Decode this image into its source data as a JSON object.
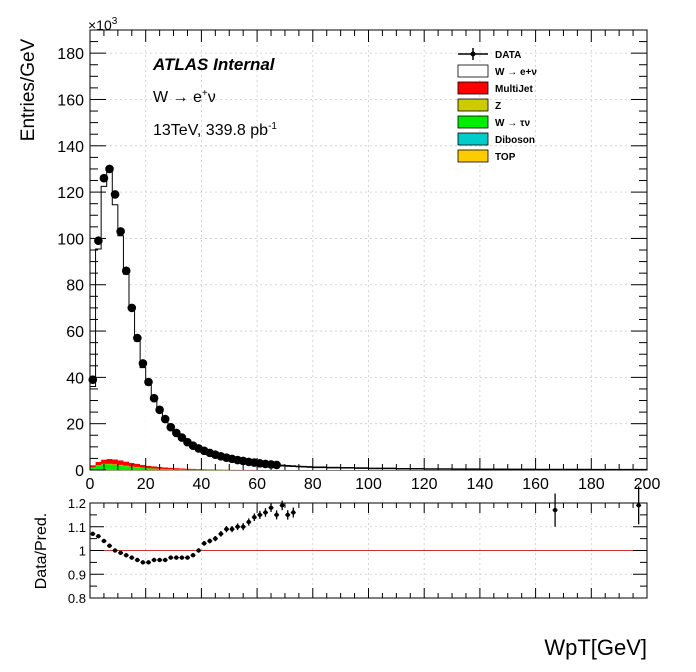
{
  "top_panel": {
    "y_label": "Entries/GeV",
    "y_multiplier": "×10",
    "y_multiplier_exp": "3",
    "atlas_label": "ATLAS Internal",
    "process_label": "W → e",
    "process_sup": "+",
    "process_tail": "ν",
    "energy_label": "13TeV, 339.8 pb",
    "energy_sup": "-1"
  },
  "bottom_panel": {
    "y_label": "Data/Pred.",
    "x_label": "WpT[GeV]"
  },
  "legend": [
    {
      "label": "DATA",
      "kind": "marker",
      "color": "#000000"
    },
    {
      "label": "W  → e+ν",
      "kind": "box",
      "color": "#ffffff"
    },
    {
      "label": "MultiJet",
      "kind": "box",
      "color": "#ff0000"
    },
    {
      "label": "Z",
      "kind": "box",
      "color": "#cccc00"
    },
    {
      "label": "W  → τν",
      "kind": "box",
      "color": "#00ee00"
    },
    {
      "label": "Diboson",
      "kind": "box",
      "color": "#00cccc"
    },
    {
      "label": "TOP",
      "kind": "box",
      "color": "#ffcc00"
    }
  ],
  "chart_data": [
    {
      "type": "bar",
      "subtype": "stacked-histogram-with-data-points",
      "x_unit": "GeV",
      "xlim": [
        0,
        200
      ],
      "ylim": [
        0,
        190
      ],
      "y_scale_factor": 1000,
      "x_ticks": [
        0,
        20,
        40,
        60,
        80,
        100,
        120,
        140,
        160,
        180,
        200
      ],
      "y_ticks": [
        0,
        20,
        40,
        60,
        80,
        100,
        120,
        140,
        160,
        180
      ],
      "bin_edges": [
        0,
        2,
        4,
        6,
        8,
        10,
        12,
        14,
        16,
        18,
        20,
        22,
        24,
        26,
        28,
        30,
        32,
        34,
        36,
        38,
        40,
        42,
        44,
        46,
        48,
        50,
        52,
        54,
        56,
        58,
        60,
        62,
        64,
        66,
        68,
        70,
        72,
        74,
        76,
        78,
        80,
        85,
        90,
        95,
        100,
        110,
        120,
        130,
        140,
        150,
        160,
        170,
        180,
        190,
        200
      ],
      "data": [
        39,
        99,
        126,
        130,
        119,
        103,
        86,
        70,
        57,
        46,
        38,
        31,
        26,
        22,
        18.5,
        16,
        14,
        12,
        10.5,
        9.3,
        8.3,
        7.4,
        6.6,
        5.9,
        5.3,
        4.8,
        4.3,
        3.9,
        3.5,
        3.2,
        2.9,
        2.6,
        2.4,
        2.2,
        2.0,
        1.85,
        1.7,
        1.55,
        1.45,
        1.35,
        1.2,
        1.05,
        0.95,
        0.85,
        0.7,
        0.55,
        0.45,
        0.38,
        0.32,
        0.27,
        0.23,
        0.2,
        0.17,
        0.15
      ],
      "series": [
        {
          "name": "TOP",
          "color": "#ffcc00",
          "values": [
            0.1,
            0.1,
            0.1,
            0.1,
            0.1,
            0.1,
            0.1,
            0.1,
            0.1,
            0.1,
            0.1,
            0.1,
            0.1,
            0.1,
            0.1,
            0.1,
            0.1,
            0.1,
            0.1,
            0.05,
            0.05,
            0.05,
            0.05,
            0.05,
            0.05,
            0,
            0,
            0,
            0,
            0,
            0,
            0,
            0,
            0,
            0,
            0,
            0,
            0,
            0,
            0,
            0,
            0,
            0,
            0,
            0,
            0,
            0,
            0,
            0,
            0,
            0,
            0,
            0,
            0
          ]
        },
        {
          "name": "Diboson",
          "color": "#00cccc",
          "values": [
            0.05,
            0.05,
            0.05,
            0.05,
            0.05,
            0.05,
            0.05,
            0.05,
            0.05,
            0.05,
            0.05,
            0.05,
            0.05,
            0.05,
            0.05,
            0,
            0,
            0,
            0,
            0,
            0,
            0,
            0,
            0,
            0,
            0,
            0,
            0,
            0,
            0,
            0,
            0,
            0,
            0,
            0,
            0,
            0,
            0,
            0,
            0,
            0,
            0,
            0,
            0,
            0,
            0,
            0,
            0,
            0,
            0,
            0,
            0,
            0,
            0
          ]
        },
        {
          "name": "W  → τν",
          "color": "#00ee00",
          "values": [
            1.0,
            1.8,
            2.3,
            2.3,
            2.1,
            1.8,
            1.5,
            1.2,
            1.0,
            0.8,
            0.6,
            0.5,
            0.4,
            0.3,
            0.25,
            0.2,
            0.15,
            0.1,
            0.08,
            0.06,
            0.05,
            0.04,
            0.03,
            0.02,
            0.02,
            0,
            0,
            0,
            0,
            0,
            0,
            0,
            0,
            0,
            0,
            0,
            0,
            0,
            0,
            0,
            0,
            0,
            0,
            0,
            0,
            0,
            0,
            0,
            0,
            0,
            0,
            0,
            0,
            0
          ]
        },
        {
          "name": "Z",
          "color": "#cccc00",
          "values": [
            0.1,
            0.2,
            0.3,
            0.3,
            0.3,
            0.3,
            0.25,
            0.2,
            0.2,
            0.15,
            0.12,
            0.1,
            0.08,
            0.06,
            0.05,
            0.04,
            0.03,
            0.02,
            0.02,
            0.01,
            0.01,
            0,
            0,
            0,
            0,
            0,
            0,
            0,
            0,
            0,
            0,
            0,
            0,
            0,
            0,
            0,
            0,
            0,
            0,
            0,
            0,
            0,
            0,
            0,
            0,
            0,
            0,
            0,
            0,
            0,
            0,
            0,
            0,
            0
          ]
        },
        {
          "name": "MultiJet",
          "color": "#ff0000",
          "values": [
            0.8,
            1.3,
            1.7,
            2.0,
            2.0,
            1.9,
            1.7,
            1.5,
            1.3,
            1.1,
            0.9,
            0.8,
            0.7,
            0.6,
            0.5,
            0.45,
            0.4,
            0.35,
            0.3,
            0.25,
            0.2,
            0.15,
            0.1,
            0.08,
            0.06,
            0.05,
            0.04,
            0.03,
            0.02,
            0.02,
            0,
            0,
            0,
            0,
            0,
            0,
            0,
            0,
            0,
            0,
            0,
            0,
            0,
            0,
            0,
            0,
            0,
            0,
            0,
            0,
            0,
            0,
            0,
            0
          ]
        },
        {
          "name": "W  → e+ν",
          "color": "#ffffff",
          "values": [
            34,
            92,
            118,
            124,
            110,
            97,
            81,
            66,
            53,
            42,
            35,
            29,
            24,
            20,
            17,
            14.5,
            12.5,
            11,
            9.5,
            8.5,
            7.5,
            6.6,
            5.9,
            5.3,
            4.7,
            4.2,
            3.8,
            3.4,
            3.1,
            2.8,
            2.5,
            2.3,
            2.1,
            1.9,
            1.75,
            1.6,
            1.5,
            1.4,
            1.3,
            1.2,
            1.05,
            0.95,
            0.85,
            0.75,
            0.62,
            0.5,
            0.42,
            0.35,
            0.3,
            0.26,
            0.22,
            0.19,
            0.16,
            0.14
          ]
        }
      ]
    },
    {
      "type": "scatter",
      "xlim": [
        0,
        200
      ],
      "ylim": [
        0.8,
        1.2
      ],
      "y_ticks": [
        0.8,
        0.9,
        1,
        1.1,
        1.2
      ],
      "reference_line": 1,
      "reference_color": "#cc3333",
      "points": [
        {
          "x": 1,
          "y": 1.07,
          "err": 0.005
        },
        {
          "x": 3,
          "y": 1.06,
          "err": 0.005
        },
        {
          "x": 5,
          "y": 1.04,
          "err": 0.005
        },
        {
          "x": 7,
          "y": 1.02,
          "err": 0.005
        },
        {
          "x": 9,
          "y": 1.0,
          "err": 0.005
        },
        {
          "x": 11,
          "y": 0.99,
          "err": 0.005
        },
        {
          "x": 13,
          "y": 0.98,
          "err": 0.005
        },
        {
          "x": 15,
          "y": 0.97,
          "err": 0.005
        },
        {
          "x": 17,
          "y": 0.96,
          "err": 0.005
        },
        {
          "x": 19,
          "y": 0.95,
          "err": 0.005
        },
        {
          "x": 21,
          "y": 0.95,
          "err": 0.005
        },
        {
          "x": 23,
          "y": 0.96,
          "err": 0.006
        },
        {
          "x": 25,
          "y": 0.96,
          "err": 0.006
        },
        {
          "x": 27,
          "y": 0.96,
          "err": 0.006
        },
        {
          "x": 29,
          "y": 0.97,
          "err": 0.006
        },
        {
          "x": 31,
          "y": 0.97,
          "err": 0.007
        },
        {
          "x": 33,
          "y": 0.97,
          "err": 0.007
        },
        {
          "x": 35,
          "y": 0.97,
          "err": 0.008
        },
        {
          "x": 37,
          "y": 0.98,
          "err": 0.008
        },
        {
          "x": 39,
          "y": 1.0,
          "err": 0.009
        },
        {
          "x": 41,
          "y": 1.03,
          "err": 0.01
        },
        {
          "x": 43,
          "y": 1.04,
          "err": 0.01
        },
        {
          "x": 45,
          "y": 1.05,
          "err": 0.011
        },
        {
          "x": 47,
          "y": 1.07,
          "err": 0.012
        },
        {
          "x": 49,
          "y": 1.09,
          "err": 0.013
        },
        {
          "x": 51,
          "y": 1.09,
          "err": 0.013
        },
        {
          "x": 53,
          "y": 1.1,
          "err": 0.014
        },
        {
          "x": 55,
          "y": 1.1,
          "err": 0.015
        },
        {
          "x": 57,
          "y": 1.12,
          "err": 0.015
        },
        {
          "x": 59,
          "y": 1.14,
          "err": 0.016
        },
        {
          "x": 61,
          "y": 1.15,
          "err": 0.017
        },
        {
          "x": 63,
          "y": 1.16,
          "err": 0.018
        },
        {
          "x": 65,
          "y": 1.18,
          "err": 0.018
        },
        {
          "x": 67,
          "y": 1.15,
          "err": 0.019
        },
        {
          "x": 69,
          "y": 1.19,
          "err": 0.02
        },
        {
          "x": 71,
          "y": 1.15,
          "err": 0.02
        },
        {
          "x": 73,
          "y": 1.16,
          "err": 0.021
        },
        {
          "x": 167,
          "y": 1.17,
          "err": 0.07
        },
        {
          "x": 197,
          "y": 1.19,
          "err": 0.08
        }
      ]
    }
  ]
}
